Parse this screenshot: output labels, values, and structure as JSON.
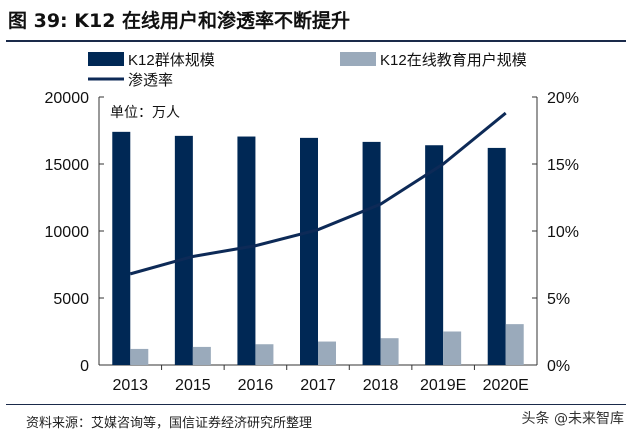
{
  "title": "图 39: K12 在线用户和渗透率不断提升",
  "source": "资料来源：艾媒咨询等，国信证券经济研究所整理",
  "watermark": "头条 @未来智库",
  "chart_data": {
    "type": "bar+line",
    "categories": [
      "2013",
      "2015",
      "2016",
      "2017",
      "2018",
      "2019E",
      "2020E"
    ],
    "unit_note": "单位：万人",
    "series": [
      {
        "name": "K12群体规模",
        "type": "bar",
        "axis": "left",
        "color": "#002855",
        "values": [
          17400,
          17100,
          17050,
          16950,
          16650,
          16400,
          16200
        ]
      },
      {
        "name": "K12在线教育用户规模",
        "type": "bar",
        "axis": "left",
        "color": "#9aaabb",
        "values": [
          1200,
          1350,
          1550,
          1750,
          2000,
          2500,
          3050
        ]
      },
      {
        "name": "渗透率",
        "type": "line",
        "axis": "right",
        "color": "#0d2a57",
        "values": [
          6.8,
          8.1,
          8.9,
          10.1,
          12.0,
          15.0,
          18.8
        ]
      }
    ],
    "y_left": {
      "min": 0,
      "max": 20000,
      "ticks": [
        0,
        5000,
        10000,
        15000,
        20000
      ]
    },
    "y_right": {
      "min": 0,
      "max": 20,
      "ticks": [
        "0%",
        "5%",
        "10%",
        "15%",
        "20%"
      ]
    },
    "legend_position": "top",
    "grid": false
  }
}
